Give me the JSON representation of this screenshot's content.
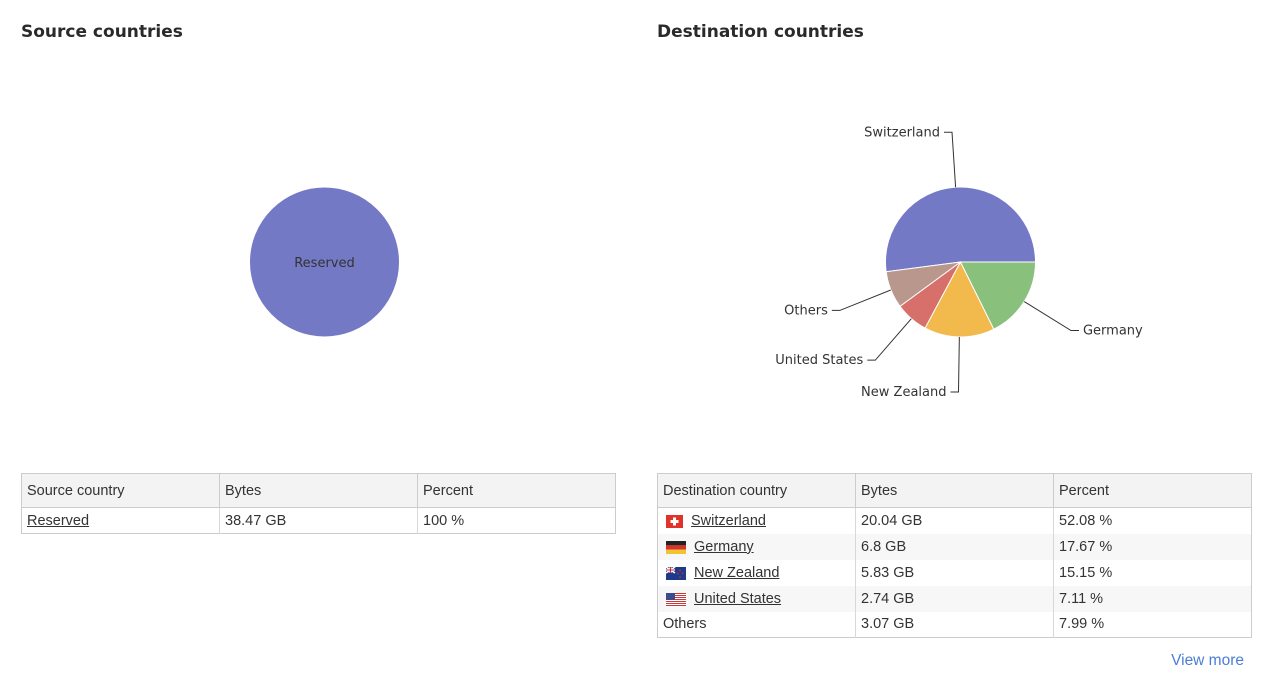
{
  "source": {
    "title": "Source countries",
    "table": {
      "headers": [
        "Source country",
        "Bytes",
        "Percent"
      ],
      "rows": [
        {
          "country": "Reserved",
          "bytes": "38.47 GB",
          "percent": "100 %"
        }
      ]
    }
  },
  "destination": {
    "title": "Destination countries",
    "table": {
      "headers": [
        "Destination country",
        "Bytes",
        "Percent"
      ],
      "rows": [
        {
          "country": "Switzerland",
          "flag": "switzerland-flag-icon",
          "bytes": "20.04 GB",
          "percent": "52.08 %"
        },
        {
          "country": "Germany",
          "flag": "germany-flag-icon",
          "bytes": "6.8 GB",
          "percent": "17.67 %"
        },
        {
          "country": "New Zealand",
          "flag": "new-zealand-flag-icon",
          "bytes": "5.83 GB",
          "percent": "15.15 %"
        },
        {
          "country": "United States",
          "flag": "united-states-flag-icon",
          "bytes": "2.74 GB",
          "percent": "7.11 %"
        },
        {
          "country": "Others",
          "flag": null,
          "bytes": "3.07 GB",
          "percent": "7.99 %"
        }
      ]
    },
    "view_more": "View more"
  },
  "chart_data": [
    {
      "type": "pie",
      "title": "Source countries",
      "categories": [
        "Reserved"
      ],
      "values": [
        100
      ],
      "colors": [
        "#7479c5"
      ]
    },
    {
      "type": "pie",
      "title": "Destination countries",
      "categories": [
        "Switzerland",
        "Others",
        "United States",
        "New Zealand",
        "Germany"
      ],
      "values": [
        52.08,
        7.99,
        7.11,
        15.15,
        17.67
      ],
      "colors": [
        "#7479c5",
        "#b9978d",
        "#d7706a",
        "#f2b94c",
        "#89c17c"
      ]
    }
  ]
}
